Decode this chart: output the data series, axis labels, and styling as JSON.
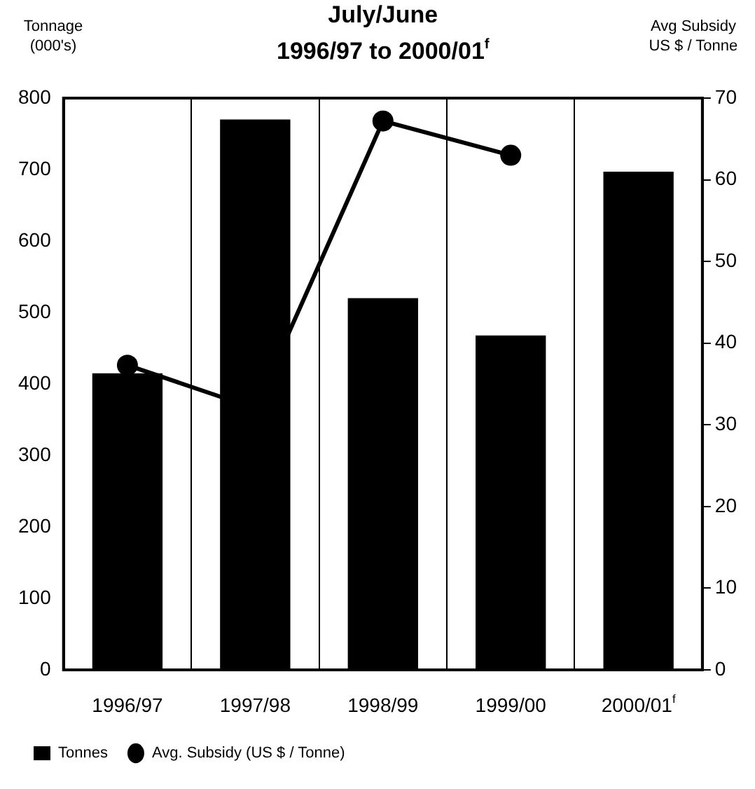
{
  "chart_data": {
    "type": "bar",
    "title": "July/June",
    "subtitle": "1996/97 to 2000/01$^{f}$",
    "ylabel": "Tonnage\n(000's)",
    "y2label": "Avg Subsidy\nUS $ / Tonne",
    "categories": [
      "1996/97",
      "1997/98",
      "1998/99",
      "1999/00",
      "2000/01$^{f}$"
    ],
    "series": [
      {
        "name": "Tonnes",
        "color": "#000000",
        "values": [
          415,
          770,
          520,
          468,
          697
        ]
      },
      {
        "name": "Avg. Subsidy (US $ / Tonne)",
        "type": "line",
        "axis": "y2",
        "color": "#000000",
        "marker": "circle",
        "values": [
          37.3,
          32,
          67.2,
          63,
          null
        ]
      }
    ],
    "ylim": [
      0,
      800
    ],
    "yticks": [
      0,
      100,
      200,
      300,
      400,
      500,
      600,
      700,
      800
    ],
    "y2lim": [
      0,
      70
    ],
    "y2ticks": [
      0,
      10,
      20,
      30,
      40,
      50,
      60,
      70
    ],
    "grid": "x",
    "legend": "bottom"
  }
}
